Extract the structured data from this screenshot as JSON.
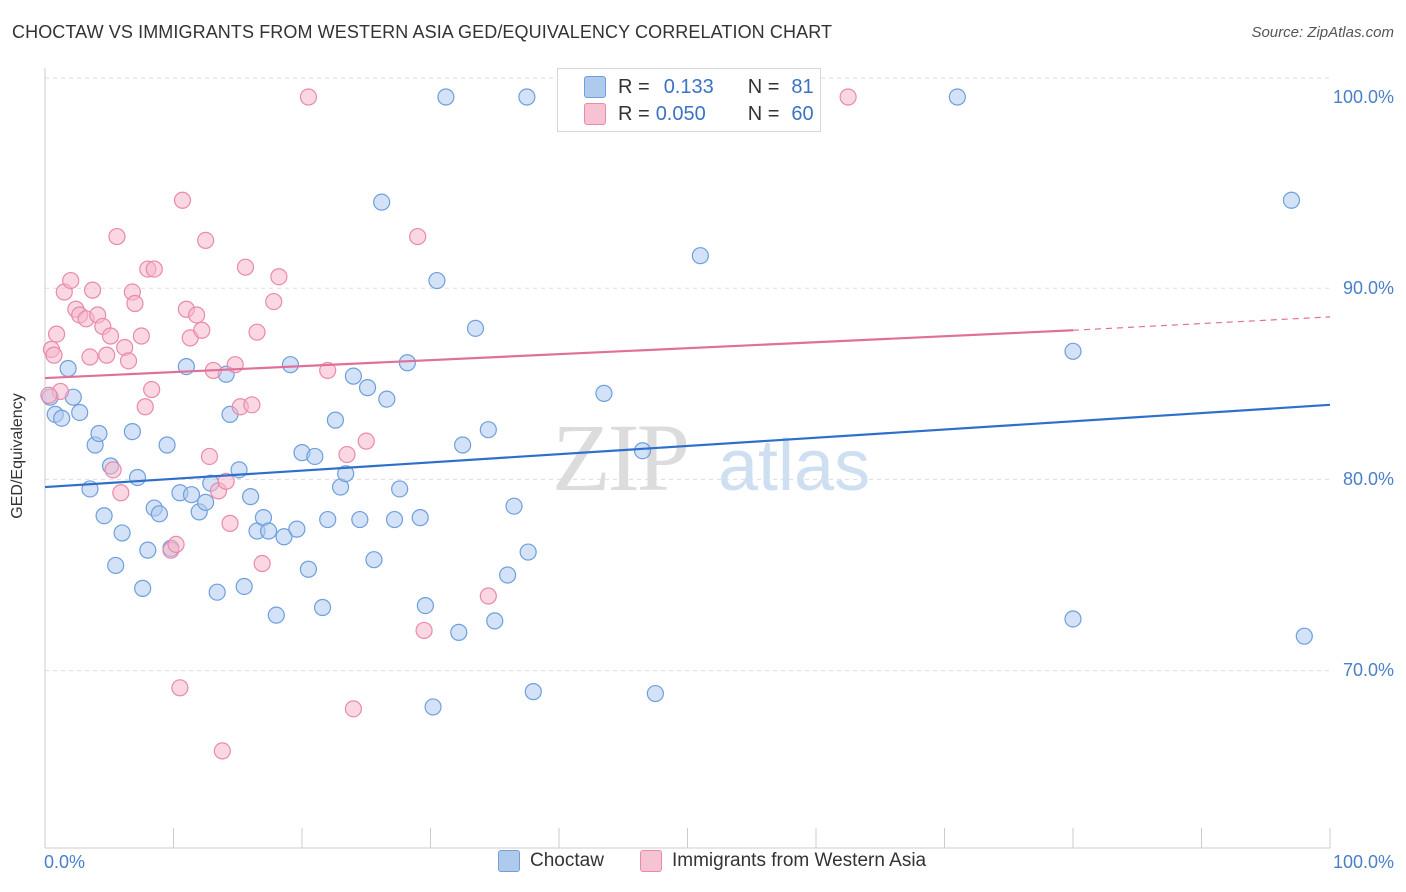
{
  "title": "CHOCTAW VS IMMIGRANTS FROM WESTERN ASIA GED/EQUIVALENCY CORRELATION CHART",
  "source": "Source: ZipAtlas.com",
  "y_axis_label": "GED/Equivalency",
  "y_ticks": [
    "100.0%",
    "90.0%",
    "80.0%",
    "70.0%"
  ],
  "x_ticks": [
    "0.0%",
    "100.0%"
  ],
  "legend_top": [
    {
      "r_label": "R = ",
      "r_value": "0.133",
      "n_label": "N = ",
      "n_value": "81"
    },
    {
      "r_label": "R = ",
      "r_value": "0.050",
      "n_label": "N = ",
      "n_value": "60"
    }
  ],
  "legend_bottom": [
    "Choctaw",
    "Immigrants from Western Asia"
  ],
  "watermark": {
    "main": "ZIP",
    "sub": "atlas"
  },
  "colors": {
    "blue_fill": "#aecbee",
    "blue_stroke": "#6f9fdc",
    "blue_line": "#2e6fcb",
    "pink_fill": "#f6b7cb",
    "pink_stroke": "#e98aa8",
    "pink_line": "#e0709a",
    "grid": "#dddddd",
    "tick_text": "#4a7fc9"
  },
  "chart_data": {
    "type": "scatter",
    "xlim": [
      0,
      100
    ],
    "ylim": [
      60,
      102
    ],
    "grid": "horizontal dashed",
    "series": [
      {
        "name": "Choctaw",
        "trend": {
          "x": [
            0,
            100
          ],
          "y": [
            79.6,
            83.9
          ]
        },
        "points": [
          [
            0.4,
            84.3
          ],
          [
            0.8,
            83.4
          ],
          [
            1.3,
            83.2
          ],
          [
            1.8,
            85.8
          ],
          [
            2.2,
            84.3
          ],
          [
            2.7,
            83.5
          ],
          [
            3.5,
            79.5
          ],
          [
            3.9,
            81.8
          ],
          [
            4.2,
            82.4
          ],
          [
            4.6,
            78.1
          ],
          [
            5.1,
            80.7
          ],
          [
            5.5,
            75.5
          ],
          [
            6.0,
            77.2
          ],
          [
            6.8,
            82.5
          ],
          [
            7.2,
            80.1
          ],
          [
            7.6,
            74.3
          ],
          [
            8.0,
            76.3
          ],
          [
            8.5,
            78.5
          ],
          [
            8.9,
            78.2
          ],
          [
            9.5,
            81.8
          ],
          [
            9.8,
            76.4
          ],
          [
            10.5,
            79.3
          ],
          [
            11.0,
            85.9
          ],
          [
            11.4,
            79.2
          ],
          [
            12.0,
            78.3
          ],
          [
            12.5,
            78.8
          ],
          [
            12.9,
            79.8
          ],
          [
            13.4,
            74.1
          ],
          [
            14.1,
            85.5
          ],
          [
            14.4,
            83.4
          ],
          [
            15.1,
            80.5
          ],
          [
            15.5,
            74.4
          ],
          [
            16.0,
            79.1
          ],
          [
            16.5,
            77.3
          ],
          [
            17.0,
            78.0
          ],
          [
            17.4,
            77.3
          ],
          [
            18.0,
            72.9
          ],
          [
            18.6,
            77.0
          ],
          [
            19.1,
            86.0
          ],
          [
            19.6,
            77.4
          ],
          [
            20.0,
            81.4
          ],
          [
            20.5,
            75.3
          ],
          [
            21.0,
            81.2
          ],
          [
            21.6,
            73.3
          ],
          [
            22.0,
            77.9
          ],
          [
            22.6,
            83.1
          ],
          [
            23.0,
            79.6
          ],
          [
            23.4,
            80.3
          ],
          [
            24.0,
            85.4
          ],
          [
            24.5,
            77.9
          ],
          [
            25.1,
            84.8
          ],
          [
            25.6,
            75.8
          ],
          [
            26.2,
            94.5
          ],
          [
            26.6,
            84.2
          ],
          [
            27.2,
            77.9
          ],
          [
            27.6,
            79.5
          ],
          [
            28.2,
            86.1
          ],
          [
            29.2,
            78.0
          ],
          [
            29.6,
            73.4
          ],
          [
            30.2,
            68.1
          ],
          [
            30.5,
            90.4
          ],
          [
            31.2,
            100.0
          ],
          [
            32.2,
            72.0
          ],
          [
            32.5,
            81.8
          ],
          [
            33.5,
            87.9
          ],
          [
            34.5,
            82.6
          ],
          [
            35.0,
            72.6
          ],
          [
            36.0,
            75.0
          ],
          [
            36.5,
            78.6
          ],
          [
            37.5,
            100.0
          ],
          [
            37.6,
            76.2
          ],
          [
            38.0,
            68.9
          ],
          [
            43.5,
            84.5
          ],
          [
            46.5,
            81.5
          ],
          [
            47.5,
            68.8
          ],
          [
            51.0,
            91.7
          ],
          [
            71.0,
            100.0
          ],
          [
            80.0,
            86.7
          ],
          [
            80.0,
            72.7
          ],
          [
            97.0,
            94.6
          ],
          [
            98.0,
            71.8
          ]
        ]
      },
      {
        "name": "Immigrants from Western Asia",
        "trend": {
          "x": [
            0,
            80
          ],
          "y": [
            85.3,
            87.8
          ],
          "dashed_to": {
            "x": 100,
            "y": 88.5
          }
        },
        "points": [
          [
            0.5,
            86.8
          ],
          [
            0.7,
            86.5
          ],
          [
            0.9,
            87.6
          ],
          [
            1.2,
            84.6
          ],
          [
            1.5,
            89.8
          ],
          [
            2.0,
            90.4
          ],
          [
            2.4,
            88.9
          ],
          [
            2.7,
            88.6
          ],
          [
            3.2,
            88.4
          ],
          [
            3.5,
            86.4
          ],
          [
            3.7,
            89.9
          ],
          [
            4.1,
            88.6
          ],
          [
            4.5,
            88.0
          ],
          [
            4.8,
            86.5
          ],
          [
            5.1,
            87.5
          ],
          [
            5.3,
            80.5
          ],
          [
            5.6,
            92.7
          ],
          [
            5.9,
            79.3
          ],
          [
            6.2,
            86.9
          ],
          [
            6.5,
            86.2
          ],
          [
            6.8,
            89.8
          ],
          [
            7.0,
            89.2
          ],
          [
            7.5,
            87.5
          ],
          [
            7.8,
            83.8
          ],
          [
            8.0,
            91.0
          ],
          [
            8.3,
            84.7
          ],
          [
            8.5,
            91.0
          ],
          [
            9.8,
            76.3
          ],
          [
            10.2,
            76.6
          ],
          [
            10.5,
            69.1
          ],
          [
            10.7,
            94.6
          ],
          [
            11.0,
            88.9
          ],
          [
            11.3,
            87.4
          ],
          [
            11.8,
            88.6
          ],
          [
            12.2,
            87.8
          ],
          [
            12.5,
            92.5
          ],
          [
            12.8,
            81.2
          ],
          [
            13.1,
            85.7
          ],
          [
            13.5,
            79.4
          ],
          [
            13.8,
            65.8
          ],
          [
            14.1,
            79.9
          ],
          [
            14.4,
            77.7
          ],
          [
            14.8,
            86.0
          ],
          [
            15.2,
            83.8
          ],
          [
            15.6,
            91.1
          ],
          [
            16.1,
            83.9
          ],
          [
            16.5,
            87.7
          ],
          [
            16.9,
            75.6
          ],
          [
            17.8,
            89.3
          ],
          [
            18.2,
            90.6
          ],
          [
            20.5,
            100.0
          ],
          [
            22.0,
            85.7
          ],
          [
            23.5,
            81.3
          ],
          [
            24.0,
            68.0
          ],
          [
            25.0,
            82.0
          ],
          [
            29.0,
            92.7
          ],
          [
            29.5,
            72.1
          ],
          [
            34.5,
            73.9
          ],
          [
            62.5,
            100.0
          ],
          [
            0.3,
            84.4
          ]
        ]
      }
    ]
  }
}
